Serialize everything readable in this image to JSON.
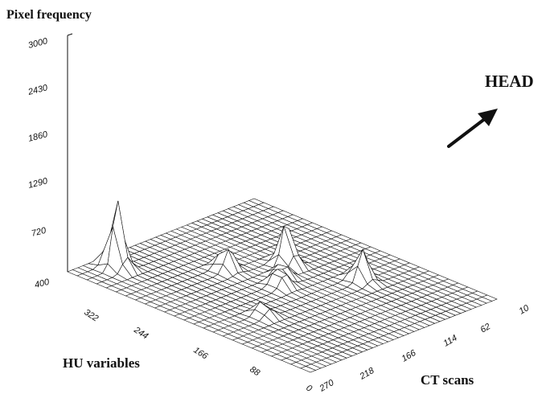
{
  "chart_data": {
    "type": "surface",
    "title": "",
    "zlabel": "Pixel frequency",
    "xlabel": "CT scans",
    "ylabel": "HU variables",
    "z_ticks": [
      "400",
      "720",
      "1290",
      "1860",
      "2430",
      "3000"
    ],
    "x_ticks": [
      "270",
      "218",
      "166",
      "114",
      "62",
      "10"
    ],
    "y_ticks": [
      "0",
      "88",
      "166",
      "244",
      "322"
    ],
    "zlim": [
      400,
      3000
    ],
    "x_range": [
      10,
      270
    ],
    "y_range": [
      0,
      400
    ],
    "grid_resolution": [
      25,
      36
    ],
    "peaks": [
      {
        "ct_scan": 250,
        "hu": 335,
        "pixel_frequency": 1150
      },
      {
        "ct_scan": 165,
        "hu": 140,
        "pixel_frequency": 880
      },
      {
        "ct_scan": 105,
        "hu": 100,
        "pixel_frequency": 760
      },
      {
        "ct_scan": 190,
        "hu": 220,
        "pixel_frequency": 680
      },
      {
        "ct_scan": 140,
        "hu": 205,
        "pixel_frequency": 620
      },
      {
        "ct_scan": 150,
        "hu": 180,
        "pixel_frequency": 580
      },
      {
        "ct_scan": 110,
        "hu": 300,
        "pixel_frequency": 560
      }
    ]
  },
  "annotation": {
    "label": "HEAD",
    "icon": "arrow-up-right-icon"
  },
  "colors": {
    "line": "#111111",
    "surface_fill": "#ffffff",
    "background": "#ffffff"
  }
}
